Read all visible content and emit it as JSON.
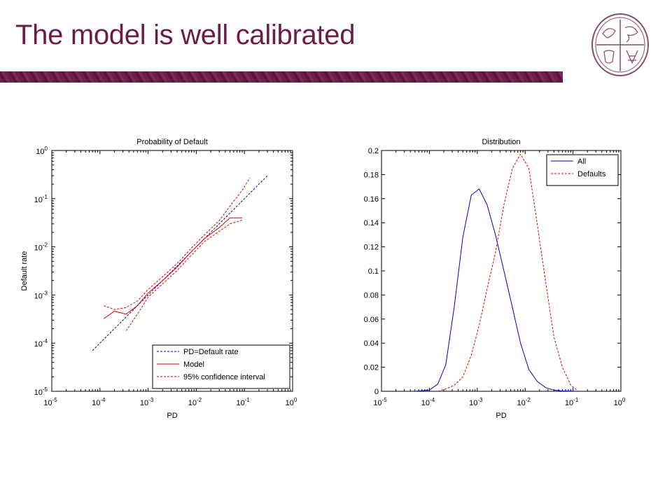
{
  "slide": {
    "title": "The model is well calibrated"
  },
  "colors": {
    "title": "#6b1d45",
    "band": "#6e1f49",
    "all": "#0000cc",
    "defaults": "#e00000"
  },
  "chart_data": [
    {
      "type": "line",
      "title": "Probability of Default",
      "xlabel": "PD",
      "ylabel": "Default rate",
      "xscale": "log",
      "yscale": "log",
      "xlim": [
        1e-05,
        1
      ],
      "ylim": [
        1e-05,
        1
      ],
      "xticks": [
        {
          "base": "10",
          "exp": "-5"
        },
        {
          "base": "10",
          "exp": "-4"
        },
        {
          "base": "10",
          "exp": "-3"
        },
        {
          "base": "10",
          "exp": "-2"
        },
        {
          "base": "10",
          "exp": "-1"
        },
        {
          "base": "10",
          "exp": "0"
        }
      ],
      "yticks": [
        {
          "base": "10",
          "exp": "-5"
        },
        {
          "base": "10",
          "exp": "-4"
        },
        {
          "base": "10",
          "exp": "-3"
        },
        {
          "base": "10",
          "exp": "-2"
        },
        {
          "base": "10",
          "exp": "-1"
        },
        {
          "base": "10",
          "exp": "0"
        }
      ],
      "legend_position": "bottom-right",
      "series": [
        {
          "name": "PD=Default rate",
          "style": "dashed",
          "color": "#0000cc",
          "x": [
            7e-05,
            0.3
          ],
          "y": [
            7e-05,
            0.3
          ]
        },
        {
          "name": "Model",
          "style": "solid",
          "color": "#e00000",
          "x": [
            0.00012,
            0.0002,
            0.00035,
            0.0006,
            0.001,
            0.002,
            0.004,
            0.008,
            0.015,
            0.03,
            0.05,
            0.09
          ],
          "y": [
            0.00032,
            0.00046,
            0.0004,
            0.0006,
            0.0011,
            0.002,
            0.0038,
            0.008,
            0.015,
            0.025,
            0.04,
            0.04
          ]
        },
        {
          "name": "95% confidence interval",
          "style": "dashed",
          "color": "#e00000",
          "x": [
            0.00012,
            0.0002,
            0.00035,
            0.0006,
            0.001,
            0.002,
            0.004,
            0.008,
            0.015,
            0.03,
            0.05,
            0.09,
            0.13
          ],
          "y": [
            0.0006,
            0.0005,
            0.00055,
            0.00075,
            0.0013,
            0.0024,
            0.0045,
            0.0095,
            0.018,
            0.035,
            0.07,
            0.15,
            0.27
          ]
        },
        {
          "name": "",
          "style": "dashed",
          "color": "#e00000",
          "x": [
            0.00035,
            0.0006,
            0.001,
            0.002,
            0.004,
            0.008,
            0.015,
            0.03,
            0.05,
            0.09
          ],
          "y": [
            0.00018,
            0.0004,
            0.0009,
            0.0017,
            0.0032,
            0.0068,
            0.013,
            0.021,
            0.03,
            0.036
          ]
        }
      ]
    },
    {
      "type": "line",
      "title": "Distribution",
      "xlabel": "PD",
      "ylabel": "",
      "xscale": "log",
      "xlim": [
        1e-05,
        1
      ],
      "ylim": [
        0,
        0.2
      ],
      "xticks": [
        {
          "base": "10",
          "exp": "-5"
        },
        {
          "base": "10",
          "exp": "-4"
        },
        {
          "base": "10",
          "exp": "-3"
        },
        {
          "base": "10",
          "exp": "-2"
        },
        {
          "base": "10",
          "exp": "-1"
        },
        {
          "base": "10",
          "exp": "0"
        }
      ],
      "yticks": [
        "0",
        "0.02",
        "0.04",
        "0.06",
        "0.08",
        "0.1",
        "0.12",
        "0.14",
        "0.16",
        "0.18",
        "0.2"
      ],
      "legend_position": "top-right",
      "series": [
        {
          "name": "All",
          "style": "solid",
          "color": "#0000cc",
          "x": [
            5e-05,
            0.0001,
            0.00015,
            0.00022,
            0.00033,
            0.0005,
            0.00075,
            0.0011,
            0.0016,
            0.0024,
            0.0036,
            0.0054,
            0.008,
            0.012,
            0.018,
            0.027,
            0.04,
            0.06,
            0.09,
            0.13
          ],
          "y": [
            0.0,
            0.001,
            0.006,
            0.022,
            0.07,
            0.128,
            0.163,
            0.168,
            0.155,
            0.13,
            0.1,
            0.07,
            0.04,
            0.018,
            0.008,
            0.003,
            0.001,
            0.0003,
            0.0001,
            0.0
          ]
        },
        {
          "name": "Defaults",
          "style": "dashed",
          "color": "#e00000",
          "x": [
            0.00015,
            0.00022,
            0.00033,
            0.0005,
            0.00075,
            0.0011,
            0.0016,
            0.0024,
            0.0036,
            0.0054,
            0.008,
            0.012,
            0.018,
            0.027,
            0.04,
            0.06,
            0.09,
            0.13
          ],
          "y": [
            0.0,
            0.002,
            0.005,
            0.012,
            0.03,
            0.055,
            0.085,
            0.115,
            0.155,
            0.185,
            0.197,
            0.185,
            0.138,
            0.09,
            0.045,
            0.02,
            0.005,
            0.0
          ]
        }
      ]
    }
  ]
}
